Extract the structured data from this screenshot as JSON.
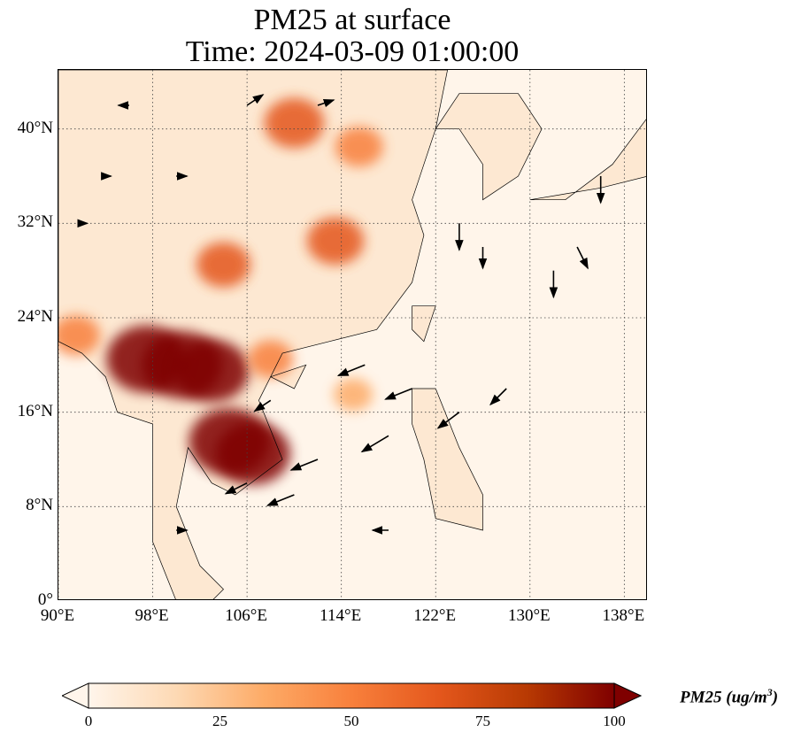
{
  "title": {
    "line1": "PM25 at surface",
    "line2": "Time: 2024-03-09 01:00:00"
  },
  "map": {
    "lon_range": [
      90,
      140
    ],
    "lat_range": [
      0,
      45
    ],
    "lat_ticks": [
      {
        "value": 0,
        "label": "0°"
      },
      {
        "value": 8,
        "label": "8°N"
      },
      {
        "value": 16,
        "label": "16°N"
      },
      {
        "value": 24,
        "label": "24°N"
      },
      {
        "value": 32,
        "label": "32°N"
      },
      {
        "value": 40,
        "label": "40°N"
      }
    ],
    "lon_ticks": [
      {
        "value": 90,
        "label": "90°E"
      },
      {
        "value": 98,
        "label": "98°E"
      },
      {
        "value": 106,
        "label": "106°E"
      },
      {
        "value": 114,
        "label": "114°E"
      },
      {
        "value": 122,
        "label": "122°E"
      },
      {
        "value": 130,
        "label": "130°E"
      },
      {
        "value": 138,
        "label": "138°E"
      }
    ],
    "gridlines": "dotted",
    "colors": {
      "ocean": "#fff5ea",
      "coastline": "#000000",
      "arrow": "#000000"
    },
    "pm25_hotspots": [
      {
        "lon": 97.5,
        "lat": 20.5,
        "value": 100
      },
      {
        "lon": 100.5,
        "lat": 20.0,
        "value": 100
      },
      {
        "lon": 103.0,
        "lat": 19.5,
        "value": 90
      },
      {
        "lon": 104.5,
        "lat": 13.5,
        "value": 100
      },
      {
        "lon": 106.5,
        "lat": 12.5,
        "value": 90
      },
      {
        "lon": 104.0,
        "lat": 28.5,
        "value": 55
      },
      {
        "lon": 113.5,
        "lat": 30.5,
        "value": 60
      },
      {
        "lon": 110.0,
        "lat": 40.5,
        "value": 65
      },
      {
        "lon": 115.5,
        "lat": 38.5,
        "value": 45
      },
      {
        "lon": 91.5,
        "lat": 22.5,
        "value": 45
      },
      {
        "lon": 108.0,
        "lat": 20.5,
        "value": 40
      },
      {
        "lon": 115.0,
        "lat": 17.5,
        "value": 30
      }
    ],
    "wind_vectors": [
      {
        "lon": 116,
        "lat": 20,
        "u": -5,
        "v": -2
      },
      {
        "lon": 120,
        "lat": 18,
        "u": -5,
        "v": -2
      },
      {
        "lon": 124,
        "lat": 16,
        "u": -4,
        "v": -3
      },
      {
        "lon": 118,
        "lat": 14,
        "u": -5,
        "v": -3
      },
      {
        "lon": 112,
        "lat": 12,
        "u": -5,
        "v": -2
      },
      {
        "lon": 110,
        "lat": 9,
        "u": -5,
        "v": -2
      },
      {
        "lon": 128,
        "lat": 18,
        "u": -3,
        "v": -3
      },
      {
        "lon": 132,
        "lat": 28,
        "u": 0,
        "v": -5
      },
      {
        "lon": 134,
        "lat": 30,
        "u": 2,
        "v": -4
      },
      {
        "lon": 136,
        "lat": 36,
        "u": 0,
        "v": -5
      },
      {
        "lon": 124,
        "lat": 32,
        "u": 0,
        "v": -5
      },
      {
        "lon": 126,
        "lat": 30,
        "u": 0,
        "v": -4
      },
      {
        "lon": 96,
        "lat": 42,
        "u": -2,
        "v": 0
      },
      {
        "lon": 106,
        "lat": 42,
        "u": 3,
        "v": 2
      },
      {
        "lon": 112,
        "lat": 42,
        "u": 3,
        "v": 1
      },
      {
        "lon": 100,
        "lat": 36,
        "u": 2,
        "v": 0
      },
      {
        "lon": 94,
        "lat": 36,
        "u": 1,
        "v": 0
      },
      {
        "lon": 92,
        "lat": 32,
        "u": 1,
        "v": 0
      },
      {
        "lon": 106,
        "lat": 10,
        "u": -4,
        "v": -2
      },
      {
        "lon": 100,
        "lat": 6,
        "u": 2,
        "v": 0
      },
      {
        "lon": 118,
        "lat": 6,
        "u": -3,
        "v": 0
      },
      {
        "lon": 108,
        "lat": 17,
        "u": -3,
        "v": -2
      }
    ]
  },
  "colorbar": {
    "min": 0,
    "max": 100,
    "ticks": [
      {
        "value": 0,
        "label": "0"
      },
      {
        "value": 25,
        "label": "25"
      },
      {
        "value": 50,
        "label": "50"
      },
      {
        "value": 75,
        "label": "75"
      },
      {
        "value": 100,
        "label": "100"
      }
    ],
    "label_text": "PM25 (ug/m",
    "label_exponent": "3",
    "label_close": ")",
    "stops": [
      "#fff5eb",
      "#fdd9b4",
      "#fdab67",
      "#f8803c",
      "#e4571c",
      "#b83a03",
      "#7f0000"
    ]
  }
}
